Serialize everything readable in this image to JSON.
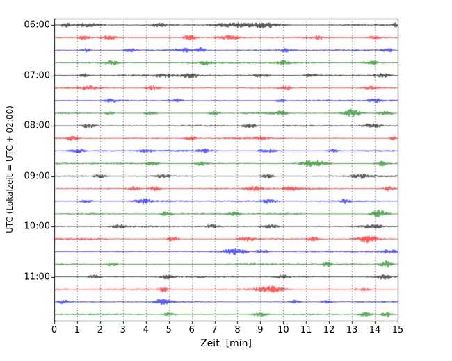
{
  "chart_data": {
    "type": "line",
    "subtype": "helicorder-seismogram",
    "title": "",
    "xlabel": "Zeit  [min]",
    "ylabel": "UTC (Lokalzeit = UTC + 02:00)",
    "x_range": [
      0,
      15
    ],
    "x_tick_labels": [
      "0",
      "1",
      "2",
      "3",
      "4",
      "5",
      "6",
      "7",
      "8",
      "9",
      "10",
      "11",
      "12",
      "13",
      "14",
      "15"
    ],
    "y_tick_labels": [
      "06:00",
      "07:00",
      "08:00",
      "09:00",
      "10:00",
      "11:00"
    ],
    "grid": "vertical-dotted",
    "legend": "none",
    "minutes_per_line": 15,
    "lines_per_hour": 4,
    "start_time_utc": "06:00",
    "line_colors_cycle": [
      "#000000",
      "#ff0000",
      "#0000ff",
      "#008000"
    ],
    "traces": [
      {
        "time": "06:00",
        "color": "#000000",
        "bursts": [
          [
            0.5,
            3,
            0.12
          ],
          [
            1.5,
            2.5,
            0.3
          ],
          [
            4.6,
            3,
            0.2
          ],
          [
            8.0,
            3.5,
            0.8
          ],
          [
            9.3,
            3,
            0.4
          ],
          [
            14.9,
            3,
            0.1
          ]
        ]
      },
      {
        "time": "06:15",
        "color": "#ff0000",
        "bursts": [
          [
            1.3,
            3,
            0.15
          ],
          [
            2.4,
            2.5,
            0.25
          ],
          [
            5.9,
            3.5,
            0.2
          ],
          [
            7.6,
            3,
            0.3
          ],
          [
            11.5,
            3,
            0.15
          ],
          [
            14.0,
            2,
            0.2
          ]
        ]
      },
      {
        "time": "06:30",
        "color": "#0000ff",
        "bursts": [
          [
            1.4,
            3,
            0.15
          ],
          [
            3.3,
            2.5,
            0.2
          ],
          [
            5.6,
            3,
            0.25
          ],
          [
            6.4,
            4,
            0.15
          ],
          [
            10.1,
            2.5,
            0.2
          ],
          [
            14.5,
            3,
            0.2
          ]
        ]
      },
      {
        "time": "06:45",
        "color": "#008000",
        "bursts": [
          [
            2.5,
            3,
            0.2
          ],
          [
            6.6,
            3,
            0.15
          ],
          [
            10.0,
            2.5,
            0.2
          ],
          [
            13.8,
            3.5,
            0.25
          ]
        ]
      },
      {
        "time": "07:00",
        "color": "#000000",
        "bursts": [
          [
            1.3,
            3,
            0.15
          ],
          [
            4.8,
            2.5,
            0.25
          ],
          [
            5.9,
            3.5,
            0.3
          ],
          [
            9.0,
            2.5,
            0.3
          ],
          [
            11.2,
            3,
            0.2
          ],
          [
            14.3,
            3.5,
            0.25
          ]
        ]
      },
      {
        "time": "07:15",
        "color": "#ff0000",
        "bursts": [
          [
            1.5,
            3,
            0.2
          ],
          [
            4.3,
            2.5,
            0.2
          ],
          [
            10.1,
            3,
            0.15
          ],
          [
            13.8,
            3,
            0.2
          ]
        ]
      },
      {
        "time": "07:30",
        "color": "#0000ff",
        "bursts": [
          [
            2.5,
            2.5,
            0.2
          ],
          [
            5.3,
            2.5,
            0.2
          ],
          [
            9.9,
            3,
            0.15
          ],
          [
            14.0,
            2.5,
            0.2
          ]
        ]
      },
      {
        "time": "07:45",
        "color": "#008000",
        "bursts": [
          [
            2.4,
            3,
            0.15
          ],
          [
            4.2,
            2.5,
            0.2
          ],
          [
            7.0,
            3,
            0.2
          ],
          [
            9.9,
            2.5,
            0.2
          ],
          [
            13.0,
            5,
            0.25
          ],
          [
            14.5,
            3.5,
            0.2
          ]
        ]
      },
      {
        "time": "08:00",
        "color": "#000000",
        "bursts": [
          [
            1.5,
            3.5,
            0.25
          ],
          [
            8.5,
            3.5,
            0.2
          ],
          [
            13.8,
            3,
            0.3
          ]
        ]
      },
      {
        "time": "08:15",
        "color": "#ff0000",
        "bursts": [
          [
            0.8,
            3.5,
            0.15
          ],
          [
            6.0,
            2.5,
            0.2
          ],
          [
            9.0,
            2.5,
            0.2
          ],
          [
            14.8,
            3,
            0.12
          ]
        ]
      },
      {
        "time": "08:30",
        "color": "#0000ff",
        "bursts": [
          [
            1.0,
            3,
            0.2
          ],
          [
            4.0,
            2.5,
            0.2
          ],
          [
            6.6,
            2.5,
            0.2
          ],
          [
            9.3,
            3,
            0.25
          ],
          [
            12.2,
            2.5,
            0.2
          ]
        ]
      },
      {
        "time": "08:45",
        "color": "#008000",
        "bursts": [
          [
            4.3,
            3,
            0.2
          ],
          [
            6.4,
            3,
            0.2
          ],
          [
            11.3,
            5,
            0.35
          ],
          [
            14.3,
            3.5,
            0.2
          ]
        ]
      },
      {
        "time": "09:00",
        "color": "#000000",
        "bursts": [
          [
            2.0,
            2.5,
            0.2
          ],
          [
            4.7,
            3,
            0.2
          ],
          [
            9.3,
            3.5,
            0.15
          ],
          [
            13.4,
            3,
            0.2
          ]
        ]
      },
      {
        "time": "09:15",
        "color": "#ff0000",
        "bursts": [
          [
            3.5,
            3,
            0.2
          ],
          [
            4.4,
            3.5,
            0.2
          ],
          [
            8.7,
            3,
            0.25
          ],
          [
            10.3,
            3,
            0.2
          ],
          [
            14.6,
            3,
            0.15
          ]
        ]
      },
      {
        "time": "09:30",
        "color": "#0000ff",
        "bursts": [
          [
            1.4,
            3,
            0.2
          ],
          [
            3.9,
            3.5,
            0.25
          ],
          [
            9.4,
            3,
            0.25
          ],
          [
            12.7,
            3,
            0.15
          ]
        ]
      },
      {
        "time": "09:45",
        "color": "#008000",
        "bursts": [
          [
            4.9,
            4,
            0.15
          ],
          [
            7.8,
            2.5,
            0.2
          ],
          [
            14.2,
            5,
            0.25
          ]
        ]
      },
      {
        "time": "10:00",
        "color": "#000000",
        "bursts": [
          [
            2.8,
            2.5,
            0.2
          ],
          [
            6.9,
            3,
            0.15
          ],
          [
            9.4,
            3,
            0.3
          ],
          [
            13.9,
            3.5,
            0.3
          ]
        ]
      },
      {
        "time": "10:15",
        "color": "#ff0000",
        "bursts": [
          [
            5.2,
            3.5,
            0.15
          ],
          [
            8.4,
            3,
            0.25
          ],
          [
            11.3,
            3.5,
            0.2
          ],
          [
            13.7,
            5,
            0.3
          ]
        ]
      },
      {
        "time": "10:30",
        "color": "#0000ff",
        "bursts": [
          [
            7.9,
            5,
            0.35
          ],
          [
            9.1,
            3,
            0.2
          ],
          [
            14.6,
            2.5,
            0.2
          ]
        ]
      },
      {
        "time": "10:45",
        "color": "#008000",
        "bursts": [
          [
            2.5,
            2.5,
            0.2
          ],
          [
            11.9,
            3,
            0.15
          ],
          [
            14.5,
            5,
            0.2
          ]
        ]
      },
      {
        "time": "11:00",
        "color": "#000000",
        "bursts": [
          [
            1.8,
            3,
            0.2
          ],
          [
            4.9,
            2.5,
            0.2
          ],
          [
            10.0,
            2.5,
            0.2
          ],
          [
            14.4,
            3.5,
            0.2
          ]
        ]
      },
      {
        "time": "11:15",
        "color": "#ff0000",
        "bursts": [
          [
            4.8,
            3.5,
            0.15
          ],
          [
            9.4,
            5,
            0.4
          ],
          [
            13.5,
            3,
            0.2
          ]
        ]
      },
      {
        "time": "11:30",
        "color": "#0000ff",
        "bursts": [
          [
            0.4,
            3,
            0.15
          ],
          [
            4.7,
            3.5,
            0.25
          ],
          [
            10.5,
            3,
            0.2
          ],
          [
            11.9,
            2.5,
            0.2
          ]
        ]
      },
      {
        "time": "11:45",
        "color": "#008000",
        "bursts": [
          [
            5.0,
            3,
            0.2
          ],
          [
            9.0,
            2.5,
            0.25
          ],
          [
            13.6,
            3,
            0.2
          ],
          [
            14.5,
            3.5,
            0.15
          ]
        ]
      }
    ]
  }
}
